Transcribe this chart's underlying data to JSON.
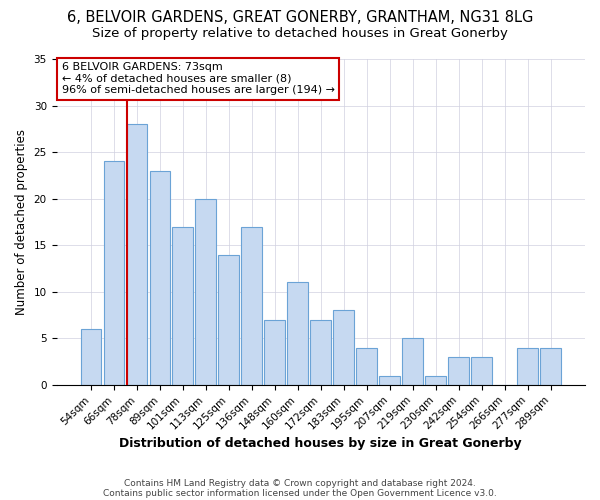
{
  "title": "6, BELVOIR GARDENS, GREAT GONERBY, GRANTHAM, NG31 8LG",
  "subtitle": "Size of property relative to detached houses in Great Gonerby",
  "xlabel": "Distribution of detached houses by size in Great Gonerby",
  "ylabel": "Number of detached properties",
  "bar_labels": [
    "54sqm",
    "66sqm",
    "78sqm",
    "89sqm",
    "101sqm",
    "113sqm",
    "125sqm",
    "136sqm",
    "148sqm",
    "160sqm",
    "172sqm",
    "183sqm",
    "195sqm",
    "207sqm",
    "219sqm",
    "230sqm",
    "242sqm",
    "254sqm",
    "266sqm",
    "277sqm",
    "289sqm"
  ],
  "bar_values": [
    6,
    24,
    28,
    23,
    17,
    20,
    14,
    17,
    7,
    11,
    7,
    8,
    4,
    1,
    5,
    1,
    3,
    3,
    0,
    4,
    4
  ],
  "bar_color": "#c6d9f1",
  "bar_edge_color": "#6ba3d6",
  "vline_color": "#cc0000",
  "vline_pos": 1.575,
  "ylim": [
    0,
    35
  ],
  "yticks": [
    0,
    5,
    10,
    15,
    20,
    25,
    30,
    35
  ],
  "annotation_title": "6 BELVOIR GARDENS: 73sqm",
  "annotation_line1": "← 4% of detached houses are smaller (8)",
  "annotation_line2": "96% of semi-detached houses are larger (194) →",
  "annotation_box_color": "#ffffff",
  "annotation_border_color": "#cc0000",
  "footnote1": "Contains HM Land Registry data © Crown copyright and database right 2024.",
  "footnote2": "Contains public sector information licensed under the Open Government Licence v3.0.",
  "background_color": "#ffffff",
  "title_fontsize": 10.5,
  "subtitle_fontsize": 9.5,
  "xlabel_fontsize": 9,
  "ylabel_fontsize": 8.5,
  "tick_fontsize": 7.5,
  "annot_fontsize": 8,
  "footnote_fontsize": 6.5
}
